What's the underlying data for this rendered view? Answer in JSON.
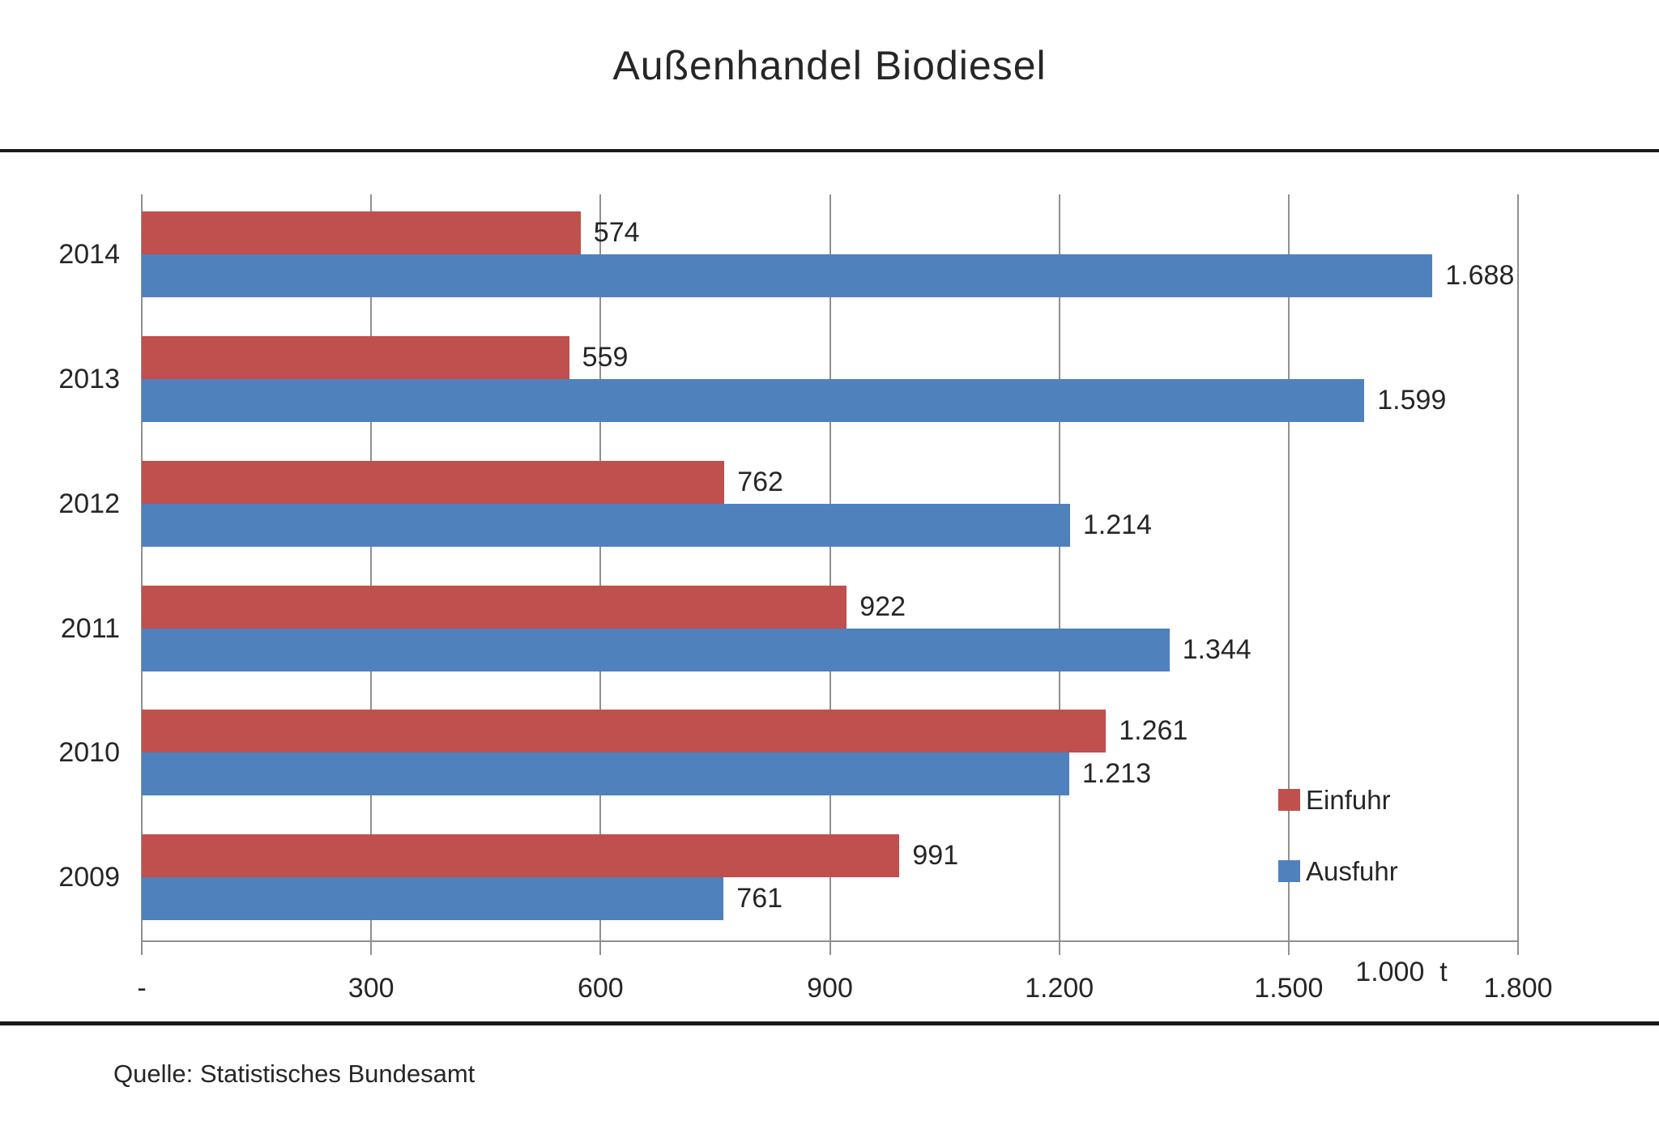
{
  "title": "Außenhandel Biodiesel",
  "source": "Quelle: Statistisches Bundesamt",
  "colors": {
    "einfuhr_red": "#C0504D",
    "ausfuhr_blue": "#4F81BD",
    "grid": "#909090",
    "rule": "#1a1a1a",
    "text": "#262626"
  },
  "chart_data": {
    "type": "bar",
    "orientation": "horizontal",
    "title": "Außenhandel Biodiesel",
    "xlabel": "1.000 t",
    "ylabel": "",
    "categories": [
      "2014",
      "2013",
      "2012",
      "2011",
      "2010",
      "2009"
    ],
    "series": [
      {
        "name": "Einfuhr",
        "color": "#C0504D",
        "values": [
          574,
          559,
          762,
          922,
          1261,
          991
        ],
        "labels": [
          "574",
          "559",
          "762",
          "922",
          "1.261",
          "991"
        ]
      },
      {
        "name": "Ausfuhr",
        "color": "#4F81BD",
        "values": [
          1688,
          1599,
          1214,
          1344,
          1213,
          761
        ],
        "labels": [
          "1.688",
          "1.599",
          "1.214",
          "1.344",
          "1.213",
          "761"
        ]
      }
    ],
    "x_axis": {
      "min": 0,
      "max": 1800,
      "ticks": [
        {
          "value": 0,
          "label": "-"
        },
        {
          "value": 300,
          "label": "300"
        },
        {
          "value": 600,
          "label": "600"
        },
        {
          "value": 900,
          "label": "900"
        },
        {
          "value": 1200,
          "label": "1.200"
        },
        {
          "value": 1500,
          "label": "1.500"
        },
        {
          "value": 1800,
          "label": "1.800"
        }
      ],
      "unit_label": "1.000  t"
    },
    "grid": true,
    "legend": {
      "position": "inside-right",
      "items": [
        "Einfuhr",
        "Ausfuhr"
      ]
    }
  }
}
